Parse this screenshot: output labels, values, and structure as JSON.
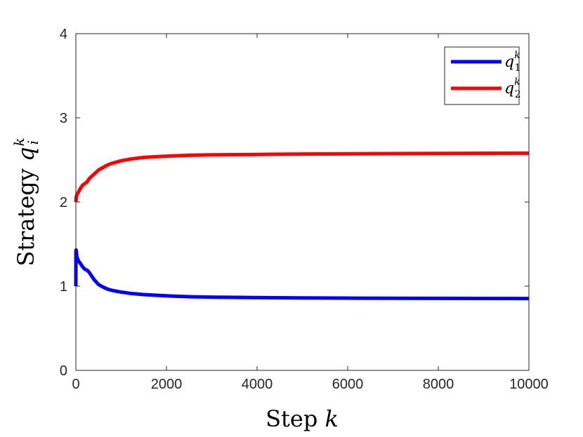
{
  "chart_data": {
    "type": "line",
    "xlabel": {
      "text": "Step",
      "var": "k"
    },
    "ylabel": {
      "text": "Strategy",
      "var": "q",
      "sub": "i",
      "sup": "k"
    },
    "xlim": [
      0,
      10000
    ],
    "ylim": [
      0,
      4
    ],
    "xticks": [
      0,
      2000,
      4000,
      6000,
      8000,
      10000
    ],
    "yticks": [
      0,
      1,
      2,
      3,
      4
    ],
    "xtick_labels": [
      "0",
      "2000",
      "4000",
      "6000",
      "8000",
      "10000"
    ],
    "ytick_labels": [
      "0",
      "1",
      "2",
      "3",
      "4"
    ],
    "grid": false,
    "legend_position": "top-right",
    "series": [
      {
        "name": "q_1^k",
        "legend": {
          "var": "q",
          "sub": "1",
          "sup": "k"
        },
        "color": "#0000ff",
        "x": [
          0,
          2,
          5,
          10,
          20,
          40,
          60,
          100,
          150,
          200,
          250,
          300,
          350,
          400,
          450,
          500,
          600,
          700,
          800,
          1000,
          1200,
          1500,
          2000,
          2500,
          3000,
          4000,
          5000,
          6000,
          7000,
          8000,
          9000,
          10000
        ],
        "y": [
          1.0,
          1.42,
          1.43,
          1.42,
          1.36,
          1.32,
          1.3,
          1.27,
          1.23,
          1.2,
          1.19,
          1.16,
          1.12,
          1.08,
          1.05,
          1.02,
          0.99,
          0.965,
          0.95,
          0.93,
          0.915,
          0.9,
          0.885,
          0.875,
          0.87,
          0.865,
          0.86,
          0.858,
          0.856,
          0.855,
          0.854,
          0.853
        ]
      },
      {
        "name": "q_2^k",
        "legend": {
          "var": "q",
          "sub": "2",
          "sup": "k"
        },
        "color": "#ff0000",
        "x": [
          0,
          5,
          10,
          20,
          40,
          60,
          100,
          150,
          200,
          250,
          300,
          400,
          500,
          600,
          700,
          800,
          1000,
          1200,
          1500,
          2000,
          2500,
          3000,
          4000,
          5000,
          6000,
          7000,
          8000,
          9000,
          10000
        ],
        "y": [
          2.0,
          2.03,
          2.06,
          2.08,
          2.1,
          2.12,
          2.16,
          2.2,
          2.22,
          2.24,
          2.28,
          2.33,
          2.38,
          2.41,
          2.44,
          2.46,
          2.49,
          2.51,
          2.53,
          2.545,
          2.555,
          2.56,
          2.565,
          2.57,
          2.572,
          2.575,
          2.577,
          2.579,
          2.58
        ]
      }
    ]
  }
}
